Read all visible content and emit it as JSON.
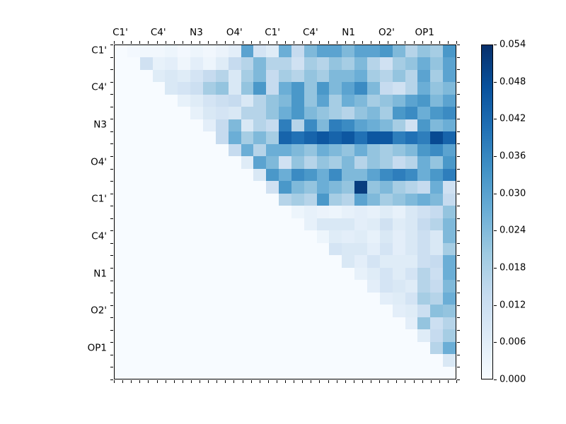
{
  "figure": {
    "background": "#ffffff",
    "type_note": "triangular correlation heatmap"
  },
  "chart_data": {
    "type": "heatmap",
    "title": "",
    "xlabel": "",
    "ylabel": "",
    "n_rows": 27,
    "n_cols": 27,
    "x_axis": {
      "labels": [
        "C1'",
        "C4'",
        "N3",
        "O4'",
        "C1'",
        "C4'",
        "N1",
        "O2'",
        "OP1"
      ],
      "label_cell_positions": [
        0,
        3,
        6,
        9,
        12,
        15,
        18,
        21,
        24
      ],
      "labels_side": "top"
    },
    "y_axis": {
      "labels": [
        "C1'",
        "C4'",
        "N3",
        "O4'",
        "C1'",
        "C4'",
        "N1",
        "O2'",
        "OP1"
      ],
      "label_cell_positions": [
        0,
        3,
        6,
        9,
        12,
        15,
        18,
        21,
        24
      ],
      "labels_side": "left"
    },
    "layout_hints": {
      "x_tick_intervals": 40,
      "y_tick_intervals": 27,
      "grid": false,
      "lower_triangle": "empty (background = colormap zero)",
      "legend_position": "colorbar-right"
    },
    "vmin": 0.0,
    "vmax": 0.054,
    "colormap": {
      "name": "Blues",
      "anchors": [
        "#f7fbff",
        "#deebf7",
        "#c6dbef",
        "#9ecae1",
        "#6baed6",
        "#4292c6",
        "#2171b5",
        "#08519c",
        "#08306b"
      ]
    },
    "colorbar": {
      "tick_labels": [
        "0.000",
        "0.006",
        "0.012",
        "0.018",
        "0.024",
        "0.030",
        "0.036",
        "0.042",
        "0.048",
        "0.054"
      ]
    },
    "matrix": [
      [
        0,
        0.0011,
        0.0016,
        0.0016,
        0.0027,
        0.0011,
        0.0027,
        0.0016,
        0.0032,
        0.0054,
        0.0297,
        0.0097,
        0.0065,
        0.027,
        0.0135,
        0.0243,
        0.0297,
        0.0297,
        0.0243,
        0.0297,
        0.0297,
        0.0324,
        0.0243,
        0.0162,
        0.0216,
        0.0189,
        0.0324
      ],
      [
        0,
        0,
        0.0108,
        0.0043,
        0.0054,
        0.0022,
        0.0054,
        0.0027,
        0.0065,
        0.0135,
        0.0162,
        0.0243,
        0.0162,
        0.0162,
        0.0108,
        0.0189,
        0.0162,
        0.0216,
        0.0189,
        0.0243,
        0.0162,
        0.0108,
        0.0189,
        0.0216,
        0.027,
        0.0216,
        0.0297
      ],
      [
        0,
        0,
        0,
        0.0065,
        0.0081,
        0.0065,
        0.0097,
        0.0135,
        0.0162,
        0.0081,
        0.0189,
        0.0243,
        0.0135,
        0.0189,
        0.0162,
        0.0216,
        0.0189,
        0.0243,
        0.0243,
        0.027,
        0.0189,
        0.0162,
        0.0216,
        0.0162,
        0.0297,
        0.0189,
        0.0297
      ],
      [
        0,
        0,
        0,
        0,
        0.0081,
        0.0097,
        0.0119,
        0.0189,
        0.0216,
        0.0081,
        0.0216,
        0.0324,
        0.0135,
        0.027,
        0.0324,
        0.0216,
        0.0324,
        0.0243,
        0.0297,
        0.0351,
        0.0243,
        0.0135,
        0.0108,
        0.0162,
        0.027,
        0.0216,
        0.0243
      ],
      [
        0,
        0,
        0,
        0,
        0,
        0.0043,
        0.0065,
        0.0097,
        0.0119,
        0.0135,
        0.0081,
        0.0162,
        0.0216,
        0.0243,
        0.0324,
        0.0216,
        0.0297,
        0.0189,
        0.027,
        0.0243,
        0.0189,
        0.0216,
        0.0243,
        0.0297,
        0.0324,
        0.0243,
        0.0297
      ],
      [
        0,
        0,
        0,
        0,
        0,
        0,
        0.0043,
        0.0081,
        0.0097,
        0.0081,
        0.0162,
        0.0162,
        0.0216,
        0.027,
        0.0324,
        0.0243,
        0.0216,
        0.0189,
        0.0162,
        0.0216,
        0.0243,
        0.0189,
        0.0324,
        0.0351,
        0.027,
        0.0324,
        0.0351
      ],
      [
        0,
        0,
        0,
        0,
        0,
        0,
        0,
        0.0054,
        0.0135,
        0.0243,
        0.0081,
        0.0162,
        0.0135,
        0.0378,
        0.0162,
        0.0351,
        0.0243,
        0.0378,
        0.0351,
        0.0297,
        0.027,
        0.0243,
        0.0189,
        0.0108,
        0.0324,
        0.0243,
        0.027
      ],
      [
        0,
        0,
        0,
        0,
        0,
        0,
        0,
        0,
        0.0135,
        0.027,
        0.0189,
        0.0243,
        0.0189,
        0.0432,
        0.0405,
        0.0432,
        0.0459,
        0.0432,
        0.0459,
        0.0405,
        0.0459,
        0.0459,
        0.0378,
        0.0405,
        0.0378,
        0.0486,
        0.0432
      ],
      [
        0,
        0,
        0,
        0,
        0,
        0,
        0,
        0,
        0,
        0.0135,
        0.027,
        0.0162,
        0.027,
        0.027,
        0.0243,
        0.0216,
        0.027,
        0.0243,
        0.0216,
        0.027,
        0.0216,
        0.0189,
        0.0216,
        0.0243,
        0.0324,
        0.0351,
        0.0297
      ],
      [
        0,
        0,
        0,
        0,
        0,
        0,
        0,
        0,
        0,
        0,
        0.0065,
        0.0297,
        0.0243,
        0.0108,
        0.0216,
        0.0162,
        0.0216,
        0.0189,
        0.0243,
        0.0162,
        0.0216,
        0.0189,
        0.0135,
        0.0162,
        0.027,
        0.0216,
        0.0324
      ],
      [
        0,
        0,
        0,
        0,
        0,
        0,
        0,
        0,
        0,
        0,
        0,
        0.0081,
        0.0324,
        0.027,
        0.0351,
        0.0324,
        0.027,
        0.0351,
        0.0243,
        0.0243,
        0.0297,
        0.0351,
        0.0378,
        0.0351,
        0.027,
        0.0324,
        0.0378
      ],
      [
        0,
        0,
        0,
        0,
        0,
        0,
        0,
        0,
        0,
        0,
        0,
        0,
        0.0108,
        0.0324,
        0.0243,
        0.0216,
        0.027,
        0.0243,
        0.0216,
        0.0513,
        0.0216,
        0.0243,
        0.0189,
        0.0162,
        0.0135,
        0.027,
        0.0108
      ],
      [
        0,
        0,
        0,
        0,
        0,
        0,
        0,
        0,
        0,
        0,
        0,
        0,
        0,
        0.0162,
        0.0189,
        0.0162,
        0.0324,
        0.0189,
        0.0162,
        0.0297,
        0.0243,
        0.0189,
        0.0216,
        0.0243,
        0.027,
        0.0243,
        0.0135
      ],
      [
        0,
        0,
        0,
        0,
        0,
        0,
        0,
        0,
        0,
        0,
        0,
        0,
        0,
        0,
        0.0027,
        0.0043,
        0.0032,
        0.0027,
        0.0043,
        0.0054,
        0.0043,
        0.0065,
        0.0043,
        0.0081,
        0.0108,
        0.0135,
        0.0216
      ],
      [
        0,
        0,
        0,
        0,
        0,
        0,
        0,
        0,
        0,
        0,
        0,
        0,
        0,
        0,
        0,
        0.0043,
        0.0081,
        0.0081,
        0.0081,
        0.0054,
        0.0065,
        0.0108,
        0.0065,
        0.0081,
        0.0135,
        0.0162,
        0.0243
      ],
      [
        0,
        0,
        0,
        0,
        0,
        0,
        0,
        0,
        0,
        0,
        0,
        0,
        0,
        0,
        0,
        0,
        0.0027,
        0.0065,
        0.0054,
        0.0065,
        0.0043,
        0.0081,
        0.0054,
        0.0081,
        0.0119,
        0.0081,
        0.0243
      ],
      [
        0,
        0,
        0,
        0,
        0,
        0,
        0,
        0,
        0,
        0,
        0,
        0,
        0,
        0,
        0,
        0,
        0,
        0.0097,
        0.0081,
        0.0081,
        0.0054,
        0.0097,
        0.0054,
        0.0081,
        0.0119,
        0.0081,
        0.0189
      ],
      [
        0,
        0,
        0,
        0,
        0,
        0,
        0,
        0,
        0,
        0,
        0,
        0,
        0,
        0,
        0,
        0,
        0,
        0,
        0.0081,
        0.0054,
        0.0097,
        0.0065,
        0.0065,
        0.0065,
        0.0119,
        0.0135,
        0.027
      ],
      [
        0,
        0,
        0,
        0,
        0,
        0,
        0,
        0,
        0,
        0,
        0,
        0,
        0,
        0,
        0,
        0,
        0,
        0,
        0,
        0.0043,
        0.0065,
        0.0097,
        0.0065,
        0.0097,
        0.0162,
        0.0119,
        0.027
      ],
      [
        0,
        0,
        0,
        0,
        0,
        0,
        0,
        0,
        0,
        0,
        0,
        0,
        0,
        0,
        0,
        0,
        0,
        0,
        0,
        0,
        0.0054,
        0.0097,
        0.0081,
        0.0065,
        0.0162,
        0.0135,
        0.0243
      ],
      [
        0,
        0,
        0,
        0,
        0,
        0,
        0,
        0,
        0,
        0,
        0,
        0,
        0,
        0,
        0,
        0,
        0,
        0,
        0,
        0,
        0,
        0.0054,
        0.0065,
        0.0097,
        0.0189,
        0.0162,
        0.027
      ],
      [
        0,
        0,
        0,
        0,
        0,
        0,
        0,
        0,
        0,
        0,
        0,
        0,
        0,
        0,
        0,
        0,
        0,
        0,
        0,
        0,
        0,
        0,
        0.0054,
        0.0065,
        0.0119,
        0.0227,
        0.0216
      ],
      [
        0,
        0,
        0,
        0,
        0,
        0,
        0,
        0,
        0,
        0,
        0,
        0,
        0,
        0,
        0,
        0,
        0,
        0,
        0,
        0,
        0,
        0,
        0,
        0.0054,
        0.0216,
        0.0119,
        0.0162
      ],
      [
        0,
        0,
        0,
        0,
        0,
        0,
        0,
        0,
        0,
        0,
        0,
        0,
        0,
        0,
        0,
        0,
        0,
        0,
        0,
        0,
        0,
        0,
        0,
        0,
        0.0065,
        0.0135,
        0.0189
      ],
      [
        0,
        0,
        0,
        0,
        0,
        0,
        0,
        0,
        0,
        0,
        0,
        0,
        0,
        0,
        0,
        0,
        0,
        0,
        0,
        0,
        0,
        0,
        0,
        0,
        0,
        0.0162,
        0.027
      ],
      [
        0,
        0,
        0,
        0,
        0,
        0,
        0,
        0,
        0,
        0,
        0,
        0,
        0,
        0,
        0,
        0,
        0,
        0,
        0,
        0,
        0,
        0,
        0,
        0,
        0,
        0,
        0.0081
      ],
      [
        0,
        0,
        0,
        0,
        0,
        0,
        0,
        0,
        0,
        0,
        0,
        0,
        0,
        0,
        0,
        0,
        0,
        0,
        0,
        0,
        0,
        0,
        0,
        0,
        0,
        0,
        0
      ]
    ]
  }
}
